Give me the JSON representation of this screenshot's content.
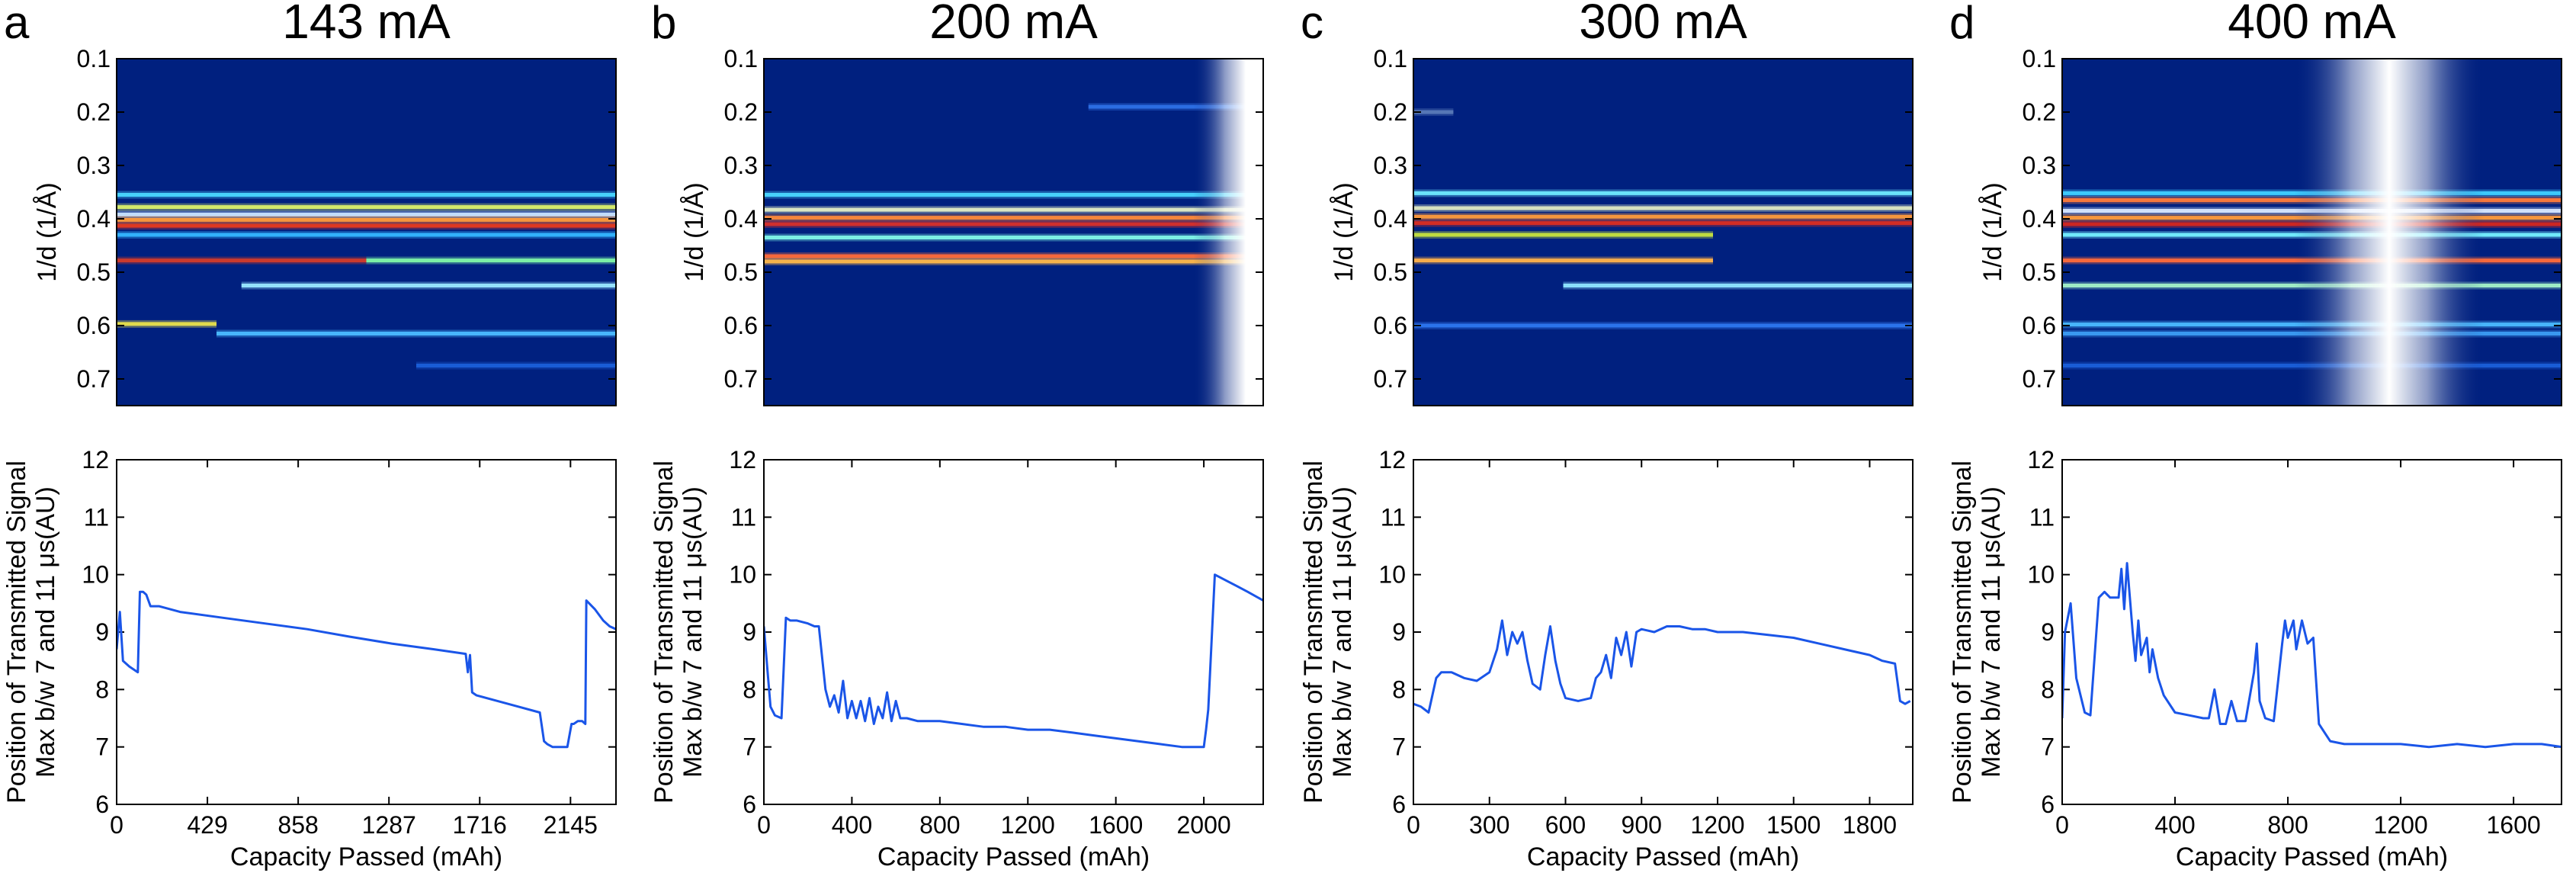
{
  "chart_data": [
    {
      "panel_letter": "a",
      "title": "143 mA",
      "top": {
        "type": "heatmap",
        "ylabel": "1/d (1/Å)",
        "ylim": [
          0.1,
          0.75
        ],
        "yticks": [
          "0.1",
          "0.2",
          "0.3",
          "0.4",
          "0.5",
          "0.6",
          "0.7"
        ],
        "background_color": "#00207f",
        "bands": [
          {
            "y": 0.355,
            "color": "#4ad7ff",
            "from": 0.0,
            "to": 1.0
          },
          {
            "y": 0.378,
            "color": "#d9ef6a",
            "from": 0.0,
            "to": 1.0
          },
          {
            "y": 0.392,
            "color": "#c8e3ff",
            "from": 0.0,
            "to": 1.0
          },
          {
            "y": 0.402,
            "color": "#ff9a3b",
            "from": 0.0,
            "to": 1.0
          },
          {
            "y": 0.413,
            "color": "#e53a1f",
            "from": 0.0,
            "to": 1.0
          },
          {
            "y": 0.43,
            "color": "#35b6ff",
            "from": 0.0,
            "to": 1.0
          },
          {
            "y": 0.478,
            "color": "#d23b2a",
            "from": 0.0,
            "to": 0.5
          },
          {
            "y": 0.478,
            "color": "#7ff7a8",
            "from": 0.5,
            "to": 1.0
          },
          {
            "y": 0.525,
            "color": "#9be8ff",
            "from": 0.25,
            "to": 1.0
          },
          {
            "y": 0.597,
            "color": "#e8e04c",
            "from": 0.0,
            "to": 0.2
          },
          {
            "y": 0.615,
            "color": "#4bbcff",
            "from": 0.2,
            "to": 1.0
          },
          {
            "y": 0.675,
            "color": "#1a5fd8",
            "from": 0.6,
            "to": 1.0
          }
        ],
        "gaps": []
      },
      "bottom": {
        "type": "line",
        "xlabel": "Capacity Passed (mAh)",
        "ylabel_lines": [
          "Position of Transmitted Signal",
          "Max b/w 7 and 11 μs(AU)"
        ],
        "xlim": [
          0,
          2360
        ],
        "ylim": [
          6,
          12
        ],
        "xticks": [
          0,
          429,
          858,
          1287,
          1716,
          2145
        ],
        "yticks": [
          6,
          7,
          8,
          9,
          10,
          11,
          12
        ],
        "x": [
          0,
          15,
          30,
          60,
          100,
          110,
          125,
          140,
          160,
          200,
          300,
          500,
          700,
          900,
          1100,
          1300,
          1500,
          1650,
          1660,
          1670,
          1680,
          1700,
          1800,
          1900,
          2000,
          2020,
          2035,
          2060,
          2100,
          2130,
          2150,
          2160,
          2180,
          2200,
          2215,
          2220,
          2260,
          2300,
          2330,
          2360
        ],
        "y": [
          8.7,
          9.35,
          8.5,
          8.4,
          8.3,
          9.7,
          9.7,
          9.65,
          9.45,
          9.45,
          9.35,
          9.25,
          9.15,
          9.05,
          8.92,
          8.8,
          8.7,
          8.62,
          8.3,
          8.6,
          7.95,
          7.9,
          7.8,
          7.7,
          7.6,
          7.1,
          7.05,
          7.0,
          7.0,
          7.0,
          7.4,
          7.4,
          7.45,
          7.45,
          7.4,
          9.55,
          9.4,
          9.2,
          9.1,
          9.05
        ]
      }
    },
    {
      "panel_letter": "b",
      "title": "200 mA",
      "top": {
        "type": "heatmap",
        "ylabel": "1/d (1/Å)",
        "ylim": [
          0.1,
          0.75
        ],
        "yticks": [
          "0.1",
          "0.2",
          "0.3",
          "0.4",
          "0.5",
          "0.6",
          "0.7"
        ],
        "background_color": "#00207f",
        "bands": [
          {
            "y": 0.355,
            "color": "#4ad7ff",
            "from": 0.0,
            "to": 1.0
          },
          {
            "y": 0.383,
            "color": "#e2ecc4",
            "from": 0.0,
            "to": 1.0
          },
          {
            "y": 0.398,
            "color": "#ff8a3a",
            "from": 0.0,
            "to": 1.0
          },
          {
            "y": 0.41,
            "color": "#d6302a",
            "from": 0.0,
            "to": 1.0
          },
          {
            "y": 0.435,
            "color": "#7ff7e8",
            "from": 0.0,
            "to": 1.0
          },
          {
            "y": 0.47,
            "color": "#ff6a3a",
            "from": 0.0,
            "to": 1.0
          },
          {
            "y": 0.48,
            "color": "#ffb84a",
            "from": 0.0,
            "to": 1.0
          },
          {
            "y": 0.19,
            "color": "#2d6fe6",
            "from": 0.65,
            "to": 1.0
          }
        ],
        "gaps": [
          {
            "center": 0.935,
            "half_width": 0.075,
            "flat_right": true
          }
        ]
      },
      "bottom": {
        "type": "line",
        "xlabel": "Capacity Passed (mAh)",
        "ylabel_lines": [
          "Position of Transmitted Signal",
          "Max b/w 7 and 11 μs(AU)"
        ],
        "xlim": [
          0,
          2270
        ],
        "ylim": [
          6,
          12
        ],
        "xticks": [
          0,
          400,
          800,
          1200,
          1600,
          2000
        ],
        "yticks": [
          6,
          7,
          8,
          9,
          10,
          11,
          12
        ],
        "x": [
          0,
          15,
          30,
          50,
          80,
          100,
          120,
          150,
          200,
          230,
          250,
          280,
          300,
          320,
          340,
          360,
          380,
          400,
          420,
          440,
          460,
          480,
          500,
          520,
          540,
          560,
          580,
          600,
          620,
          650,
          700,
          800,
          900,
          1000,
          1100,
          1200,
          1300,
          1400,
          1500,
          1600,
          1700,
          1800,
          1900,
          1950,
          1980,
          2000,
          2010,
          2020,
          2050,
          2100,
          2150,
          2200,
          2270
        ],
        "y": [
          9.1,
          8.4,
          7.7,
          7.55,
          7.5,
          9.25,
          9.2,
          9.2,
          9.15,
          9.1,
          9.1,
          8.0,
          7.7,
          7.9,
          7.6,
          8.15,
          7.5,
          7.8,
          7.5,
          7.8,
          7.45,
          7.85,
          7.4,
          7.7,
          7.5,
          7.95,
          7.45,
          7.8,
          7.5,
          7.5,
          7.45,
          7.45,
          7.4,
          7.35,
          7.35,
          7.3,
          7.3,
          7.25,
          7.2,
          7.15,
          7.1,
          7.05,
          7.0,
          7.0,
          7.0,
          7.0,
          7.3,
          7.65,
          10.0,
          9.9,
          9.8,
          9.7,
          9.55
        ]
      }
    },
    {
      "panel_letter": "c",
      "title": "300 mA",
      "top": {
        "type": "heatmap",
        "ylabel": "1/d (1/Å)",
        "ylim": [
          0.1,
          0.75
        ],
        "yticks": [
          "0.1",
          "0.2",
          "0.3",
          "0.4",
          "0.5",
          "0.6",
          "0.7"
        ],
        "background_color": "#00207f",
        "bands": [
          {
            "y": 0.352,
            "color": "#6fe9ff",
            "from": 0.0,
            "to": 1.0
          },
          {
            "y": 0.38,
            "color": "#dde8c2",
            "from": 0.0,
            "to": 1.0
          },
          {
            "y": 0.396,
            "color": "#ff9a3b",
            "from": 0.0,
            "to": 1.0
          },
          {
            "y": 0.408,
            "color": "#d92e22",
            "from": 0.0,
            "to": 1.0
          },
          {
            "y": 0.43,
            "color": "#c6e23e",
            "from": 0.0,
            "to": 0.6
          },
          {
            "y": 0.478,
            "color": "#ffb14a",
            "from": 0.0,
            "to": 0.6
          },
          {
            "y": 0.525,
            "color": "#8fe5ff",
            "from": 0.3,
            "to": 1.0
          },
          {
            "y": 0.6,
            "color": "#2d76ee",
            "from": 0.0,
            "to": 1.0
          },
          {
            "y": 0.2,
            "color": "#5a7ab8",
            "from": 0.0,
            "to": 0.08
          }
        ],
        "gaps": []
      },
      "bottom": {
        "type": "line",
        "xlabel": "Capacity Passed (mAh)",
        "ylabel_lines": [
          "Position of Transmitted Signal",
          "Max b/w 7 and 11 μs(AU)"
        ],
        "xlim": [
          0,
          1970
        ],
        "ylim": [
          6,
          12
        ],
        "xticks": [
          0,
          300,
          600,
          900,
          1200,
          1500,
          1800
        ],
        "yticks": [
          6,
          7,
          8,
          9,
          10,
          11,
          12
        ],
        "x": [
          0,
          30,
          60,
          90,
          110,
          150,
          200,
          250,
          300,
          330,
          350,
          370,
          390,
          410,
          430,
          450,
          470,
          500,
          520,
          540,
          560,
          580,
          600,
          650,
          700,
          720,
          740,
          760,
          780,
          800,
          820,
          840,
          860,
          880,
          900,
          950,
          1000,
          1050,
          1100,
          1150,
          1200,
          1300,
          1400,
          1500,
          1600,
          1700,
          1800,
          1850,
          1900,
          1920,
          1940,
          1960
        ],
        "y": [
          7.75,
          7.7,
          7.6,
          8.2,
          8.3,
          8.3,
          8.2,
          8.15,
          8.3,
          8.7,
          9.2,
          8.6,
          9.0,
          8.8,
          9.0,
          8.5,
          8.1,
          8.0,
          8.6,
          9.1,
          8.5,
          8.1,
          7.85,
          7.8,
          7.85,
          8.2,
          8.3,
          8.6,
          8.2,
          8.9,
          8.6,
          9.0,
          8.4,
          9.0,
          9.05,
          9.0,
          9.1,
          9.1,
          9.05,
          9.05,
          9.0,
          9.0,
          8.95,
          8.9,
          8.8,
          8.7,
          8.6,
          8.5,
          8.45,
          7.8,
          7.75,
          7.8
        ]
      }
    },
    {
      "panel_letter": "d",
      "title": "400 mA",
      "top": {
        "type": "heatmap",
        "ylabel": "1/d (1/Å)",
        "ylim": [
          0.1,
          0.75
        ],
        "yticks": [
          "0.1",
          "0.2",
          "0.3",
          "0.4",
          "0.5",
          "0.6",
          "0.7"
        ],
        "background_color": "#00207f",
        "bands": [
          {
            "y": 0.352,
            "color": "#3fcfff",
            "from": 0.0,
            "to": 1.0
          },
          {
            "y": 0.365,
            "color": "#ff7a3a",
            "from": 0.0,
            "to": 1.0
          },
          {
            "y": 0.385,
            "color": "#d8e8ff",
            "from": 0.0,
            "to": 1.0
          },
          {
            "y": 0.398,
            "color": "#ff9a3b",
            "from": 0.0,
            "to": 1.0
          },
          {
            "y": 0.41,
            "color": "#d3281f",
            "from": 0.0,
            "to": 1.0
          },
          {
            "y": 0.43,
            "color": "#75f0ff",
            "from": 0.0,
            "to": 1.0
          },
          {
            "y": 0.478,
            "color": "#ff6a3a",
            "from": 0.0,
            "to": 1.0
          },
          {
            "y": 0.525,
            "color": "#a3f2c7",
            "from": 0.0,
            "to": 1.0
          },
          {
            "y": 0.598,
            "color": "#4bbcff",
            "from": 0.0,
            "to": 1.0
          },
          {
            "y": 0.615,
            "color": "#3b9cf2",
            "from": 0.0,
            "to": 1.0
          },
          {
            "y": 0.675,
            "color": "#1a5fd8",
            "from": 0.0,
            "to": 1.0
          }
        ],
        "gaps": [
          {
            "center": 0.655,
            "half_width": 0.19,
            "flat_right": false
          }
        ]
      },
      "bottom": {
        "type": "line",
        "xlabel": "Capacity Passed (mAh)",
        "ylabel_lines": [
          "Position of Transmitted Signal",
          "Max b/w 7 and 11 μs(AU)"
        ],
        "xlim": [
          0,
          1770
        ],
        "ylim": [
          6,
          12
        ],
        "xticks": [
          0,
          400,
          800,
          1200,
          1600
        ],
        "yticks": [
          6,
          7,
          8,
          9,
          10,
          11,
          12
        ],
        "x": [
          0,
          10,
          30,
          50,
          80,
          100,
          130,
          150,
          170,
          200,
          210,
          220,
          230,
          250,
          260,
          270,
          280,
          300,
          310,
          320,
          340,
          360,
          400,
          450,
          500,
          520,
          540,
          560,
          580,
          600,
          620,
          650,
          680,
          690,
          700,
          720,
          750,
          780,
          790,
          800,
          820,
          830,
          850,
          870,
          890,
          910,
          950,
          1000,
          1050,
          1100,
          1150,
          1200,
          1300,
          1400,
          1500,
          1600,
          1700,
          1770
        ],
        "y": [
          7.5,
          9.0,
          9.5,
          8.2,
          7.6,
          7.55,
          9.6,
          9.7,
          9.6,
          9.6,
          10.1,
          9.4,
          10.2,
          9.0,
          8.5,
          9.2,
          8.6,
          8.9,
          8.3,
          8.7,
          8.2,
          7.9,
          7.6,
          7.55,
          7.5,
          7.5,
          8.0,
          7.4,
          7.4,
          7.8,
          7.45,
          7.45,
          8.3,
          8.8,
          7.8,
          7.5,
          7.45,
          8.8,
          9.2,
          8.9,
          9.2,
          8.7,
          9.2,
          8.8,
          8.9,
          7.4,
          7.1,
          7.05,
          7.05,
          7.05,
          7.05,
          7.05,
          7.0,
          7.05,
          7.0,
          7.05,
          7.05,
          7.0
        ]
      }
    }
  ],
  "colors": {
    "line": "#1a55e8",
    "gap_center": "#ffffff"
  }
}
